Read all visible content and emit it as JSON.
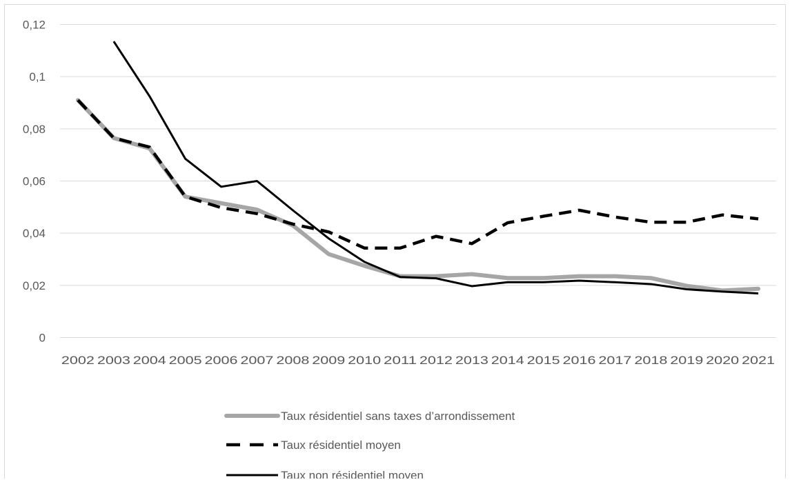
{
  "chart_data": {
    "type": "line",
    "title": "",
    "xlabel": "",
    "ylabel": "",
    "x": [
      "2002",
      "2003",
      "2004",
      "2005",
      "2006",
      "2007",
      "2008",
      "2009",
      "2010",
      "2011",
      "2012",
      "2013",
      "2014",
      "2015",
      "2016",
      "2017",
      "2018",
      "2019",
      "2020",
      "2021"
    ],
    "ylim": [
      0,
      0.12
    ],
    "yticks": [
      "0",
      "0,02",
      "0,04",
      "0,06",
      "0,08",
      "0,1",
      "0,12"
    ],
    "grid": true,
    "legend_position": "bottom",
    "series": [
      {
        "name": "Taux résidentiel sans taxes d’arrondissement",
        "style": "solid-thick",
        "color": "#a6a6a6",
        "values": [
          0.091,
          0.0765,
          0.0725,
          0.054,
          0.0515,
          0.049,
          0.043,
          0.032,
          0.0275,
          0.0235,
          0.0235,
          0.0243,
          0.0228,
          0.0228,
          0.0235,
          0.0235,
          0.0228,
          0.0198,
          0.018,
          0.0187
        ]
      },
      {
        "name": "Taux résidentiel moyen",
        "style": "dashed",
        "color": "#000000",
        "values": [
          0.091,
          0.0765,
          0.073,
          0.054,
          0.0498,
          0.0475,
          0.0435,
          0.0405,
          0.0343,
          0.0343,
          0.0388,
          0.036,
          0.044,
          0.0465,
          0.0488,
          0.0462,
          0.0442,
          0.0442,
          0.047,
          0.0455
        ]
      },
      {
        "name": "Taux non résidentiel moyen",
        "style": "solid-thin",
        "color": "#000000",
        "values": [
          null,
          0.1135,
          0.0925,
          0.0685,
          0.0578,
          0.06,
          0.0488,
          0.038,
          0.029,
          0.0232,
          0.0227,
          0.0197,
          0.0212,
          0.0212,
          0.0218,
          0.0212,
          0.0205,
          0.0185,
          0.0176,
          0.0169
        ]
      }
    ]
  }
}
